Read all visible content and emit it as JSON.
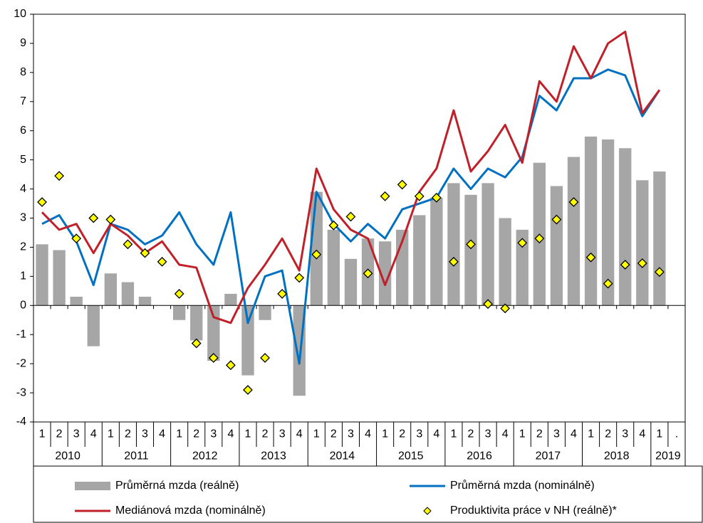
{
  "chart_data": {
    "type": "combo",
    "categories": [
      "1",
      "2",
      "3",
      "4",
      "1",
      "2",
      "3",
      "4",
      "1",
      "2",
      "3",
      "4",
      "1",
      "2",
      "3",
      "4",
      "1",
      "2",
      "3",
      "4",
      "1",
      "2",
      "3",
      "4",
      "1",
      "2",
      "3",
      "4",
      "1",
      "2",
      "3",
      "4",
      "1",
      "2",
      "3",
      "4",
      "1",
      "."
    ],
    "years": [
      "2010",
      "2011",
      "2012",
      "2013",
      "2014",
      "2015",
      "2016",
      "2017",
      "2018",
      "2019"
    ],
    "ylim": [
      -4,
      10
    ],
    "yticks": [
      -4,
      -3,
      -2,
      -1,
      0,
      1,
      2,
      3,
      4,
      5,
      6,
      7,
      8,
      9,
      10
    ],
    "series": [
      {
        "name": "Průměrná mzda (reálně)",
        "kind": "bar",
        "color": "#a6a6a6",
        "values": [
          2.1,
          1.9,
          0.3,
          -1.4,
          1.1,
          0.8,
          0.3,
          0,
          -0.5,
          -1.2,
          -1.9,
          0.4,
          -2.4,
          -0.5,
          0,
          -3.1,
          3.9,
          2.6,
          1.6,
          2.3,
          2.2,
          2.6,
          3.1,
          3.7,
          4.2,
          3.8,
          4.2,
          3.0,
          2.6,
          4.9,
          4.1,
          5.1,
          5.8,
          5.7,
          5.4,
          4.3,
          4.6,
          null
        ]
      },
      {
        "name": "Průměrná mzda (nominálně)",
        "kind": "line",
        "color": "#0070c0",
        "values": [
          2.8,
          3.1,
          2.2,
          0.7,
          2.8,
          2.6,
          2.1,
          2.4,
          3.2,
          2.1,
          1.4,
          3.2,
          -0.6,
          1.0,
          1.2,
          -2.0,
          3.9,
          2.8,
          2.2,
          2.8,
          2.3,
          3.3,
          3.5,
          3.7,
          4.7,
          4.0,
          4.7,
          4.4,
          5.1,
          7.2,
          6.7,
          7.8,
          7.8,
          8.1,
          7.9,
          6.5,
          7.4,
          null
        ]
      },
      {
        "name": "Mediánová mzda (nominálně)",
        "kind": "line",
        "color": "#c0202a",
        "values": [
          3.2,
          2.6,
          2.8,
          1.8,
          2.8,
          2.4,
          1.8,
          2.2,
          1.4,
          1.3,
          -0.4,
          -0.6,
          0.6,
          1.4,
          2.3,
          1.2,
          4.7,
          3.3,
          2.6,
          2.3,
          0.7,
          2.2,
          3.9,
          4.7,
          6.7,
          4.6,
          5.3,
          6.2,
          4.9,
          7.7,
          7.0,
          8.9,
          7.8,
          9.0,
          9.4,
          6.6,
          7.4,
          null
        ]
      },
      {
        "name": "Produktivita práce v NH (reálně)*",
        "kind": "marker",
        "color": "#ffff00",
        "values": [
          3.55,
          4.45,
          2.3,
          3.0,
          2.95,
          2.1,
          1.8,
          1.5,
          0.4,
          -1.3,
          -1.8,
          -2.05,
          -2.9,
          -1.8,
          0.4,
          0.95,
          1.75,
          2.75,
          3.05,
          1.1,
          3.75,
          4.15,
          3.75,
          3.7,
          1.5,
          2.1,
          0.05,
          -0.1,
          2.15,
          2.3,
          2.95,
          3.55,
          1.65,
          0.75,
          1.4,
          1.45,
          1.15,
          null
        ]
      }
    ]
  }
}
